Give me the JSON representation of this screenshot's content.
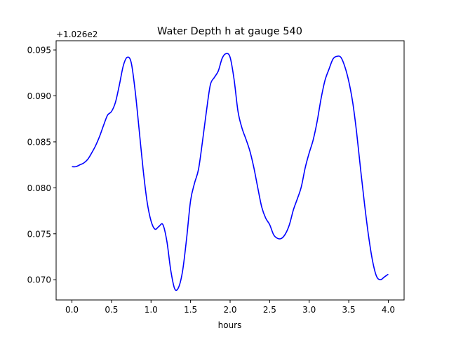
{
  "chart_data": {
    "type": "line",
    "title": "Water Depth h at gauge 540",
    "xlabel": "hours",
    "ylabel": "",
    "offset_label": "+1.026e2",
    "xlim": [
      -0.2,
      4.2
    ],
    "ylim": [
      0.0678,
      0.096
    ],
    "xticks": [
      0.0,
      0.5,
      1.0,
      1.5,
      2.0,
      2.5,
      3.0,
      3.5,
      4.0
    ],
    "xtick_labels": [
      "0.0",
      "0.5",
      "1.0",
      "1.5",
      "2.0",
      "2.5",
      "3.0",
      "3.5",
      "4.0"
    ],
    "yticks": [
      0.07,
      0.075,
      0.08,
      0.085,
      0.09,
      0.095
    ],
    "ytick_labels": [
      "0.070",
      "0.075",
      "0.080",
      "0.085",
      "0.090",
      "0.095"
    ],
    "grid": false,
    "series": [
      {
        "color": "#0000ff",
        "x": [
          0.0,
          0.05,
          0.1,
          0.15,
          0.2,
          0.25,
          0.3,
          0.35,
          0.4,
          0.45,
          0.5,
          0.55,
          0.6,
          0.65,
          0.7,
          0.75,
          0.8,
          0.85,
          0.9,
          0.95,
          1.0,
          1.05,
          1.1,
          1.15,
          1.2,
          1.25,
          1.3,
          1.35,
          1.4,
          1.45,
          1.5,
          1.55,
          1.6,
          1.65,
          1.7,
          1.75,
          1.8,
          1.85,
          1.9,
          1.95,
          2.0,
          2.05,
          2.1,
          2.15,
          2.2,
          2.25,
          2.3,
          2.35,
          2.4,
          2.45,
          2.5,
          2.55,
          2.6,
          2.65,
          2.7,
          2.75,
          2.8,
          2.85,
          2.9,
          2.95,
          3.0,
          3.05,
          3.1,
          3.15,
          3.2,
          3.25,
          3.3,
          3.35,
          3.4,
          3.45,
          3.5,
          3.55,
          3.6,
          3.65,
          3.7,
          3.75,
          3.8,
          3.85,
          3.9,
          3.95,
          4.0
        ],
        "y": [
          0.0823,
          0.0823,
          0.0825,
          0.0827,
          0.0831,
          0.0838,
          0.0846,
          0.0856,
          0.0868,
          0.0879,
          0.0883,
          0.0893,
          0.0912,
          0.0933,
          0.0942,
          0.0936,
          0.0905,
          0.0863,
          0.082,
          0.0785,
          0.0764,
          0.0755,
          0.0758,
          0.076,
          0.0742,
          0.071,
          0.069,
          0.0692,
          0.071,
          0.0745,
          0.0786,
          0.0805,
          0.082,
          0.085,
          0.0883,
          0.0912,
          0.092,
          0.0927,
          0.0941,
          0.0946,
          0.0942,
          0.0918,
          0.0883,
          0.0865,
          0.0853,
          0.084,
          0.0822,
          0.08,
          0.0779,
          0.0767,
          0.076,
          0.0749,
          0.0745,
          0.0745,
          0.075,
          0.076,
          0.0776,
          0.0788,
          0.0801,
          0.0822,
          0.0838,
          0.0852,
          0.0872,
          0.0897,
          0.0917,
          0.0929,
          0.094,
          0.0943,
          0.0942,
          0.0932,
          0.0916,
          0.0893,
          0.086,
          0.082,
          0.0782,
          0.0748,
          0.0721,
          0.0704,
          0.07,
          0.0703,
          0.0706
        ]
      }
    ]
  }
}
